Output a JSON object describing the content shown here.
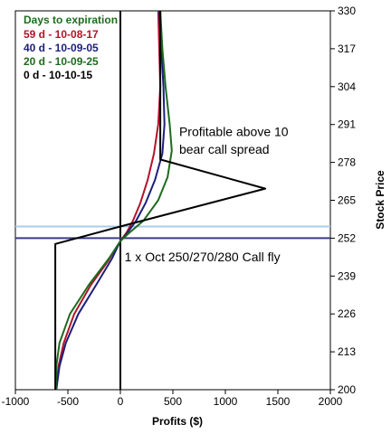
{
  "chart_data": {
    "type": "line",
    "orientation": "horizontal-x-profit-vertical-y-price",
    "xlabel": "Profits ($)",
    "ylabel": "Stock Price",
    "xlim": [
      -1000,
      2000
    ],
    "ylim": [
      200,
      330
    ],
    "x_ticks": [
      "-1000",
      "-500",
      "0",
      "500",
      "1000",
      "1500",
      "2000"
    ],
    "x_tick_values": [
      -1000,
      -500,
      0,
      500,
      1000,
      1500,
      2000
    ],
    "y_ticks": [
      "200",
      "213",
      "226",
      "239",
      "252",
      "265",
      "278",
      "291",
      "304",
      "317",
      "330"
    ],
    "y_tick_values": [
      200,
      213,
      226,
      239,
      252,
      265,
      278,
      291,
      304,
      317,
      330
    ],
    "grid": false,
    "legend_title": "Days to  expiration",
    "legend_title_color": "#1e6b1e",
    "series": [
      {
        "name": "59 d  - 10-08-17",
        "color": "#b2142a",
        "points": [
          [
            -610,
            200
          ],
          [
            -590,
            208
          ],
          [
            -540,
            216
          ],
          [
            -440,
            226
          ],
          [
            -280,
            236
          ],
          [
            -120,
            244
          ],
          [
            0,
            251
          ],
          [
            60,
            254
          ],
          [
            120,
            258
          ],
          [
            190,
            264
          ],
          [
            260,
            272
          ],
          [
            320,
            281
          ],
          [
            360,
            291
          ],
          [
            380,
            304
          ],
          [
            370,
            317
          ],
          [
            360,
            330
          ]
        ]
      },
      {
        "name": "40 d  - 10-09-05",
        "color": "#1c1f7a",
        "points": [
          [
            -610,
            200
          ],
          [
            -580,
            208
          ],
          [
            -520,
            216
          ],
          [
            -400,
            226
          ],
          [
            -230,
            236
          ],
          [
            -80,
            245
          ],
          [
            0,
            251
          ],
          [
            70,
            254
          ],
          [
            150,
            258
          ],
          [
            240,
            264
          ],
          [
            330,
            272
          ],
          [
            400,
            281
          ],
          [
            420,
            291
          ],
          [
            410,
            304
          ],
          [
            390,
            317
          ],
          [
            370,
            330
          ]
        ]
      },
      {
        "name": "20 d  - 10-09-25",
        "color": "#1e6b1e",
        "points": [
          [
            -615,
            200
          ],
          [
            -610,
            208
          ],
          [
            -580,
            216
          ],
          [
            -480,
            226
          ],
          [
            -300,
            236
          ],
          [
            -110,
            245
          ],
          [
            0,
            251
          ],
          [
            90,
            254
          ],
          [
            220,
            258
          ],
          [
            360,
            265
          ],
          [
            450,
            273
          ],
          [
            490,
            282
          ],
          [
            470,
            291
          ],
          [
            430,
            304
          ],
          [
            400,
            317
          ],
          [
            380,
            330
          ]
        ]
      },
      {
        "name": "0 d  - 10-10-15",
        "color": "#000000",
        "points": [
          [
            -620,
            200
          ],
          [
            -620,
            250
          ],
          [
            0,
            256
          ],
          [
            1380,
            269
          ],
          [
            380,
            279
          ],
          [
            380,
            330
          ]
        ]
      }
    ],
    "reference_lines": [
      {
        "orientation": "vertical",
        "x": 0,
        "color": "#000000"
      },
      {
        "orientation": "horizontal",
        "y": 252,
        "color": "#3a3a8c"
      },
      {
        "orientation": "horizontal",
        "y": 256,
        "color": "#a8cce8"
      }
    ],
    "annotations": [
      {
        "text": "Profitable above 10",
        "x": 560,
        "y": 287
      },
      {
        "text": "bear call spread",
        "x": 560,
        "y": 281
      },
      {
        "text": "1 x Oct 250/270/280 Call fly",
        "x": 40,
        "y": 244
      }
    ]
  }
}
